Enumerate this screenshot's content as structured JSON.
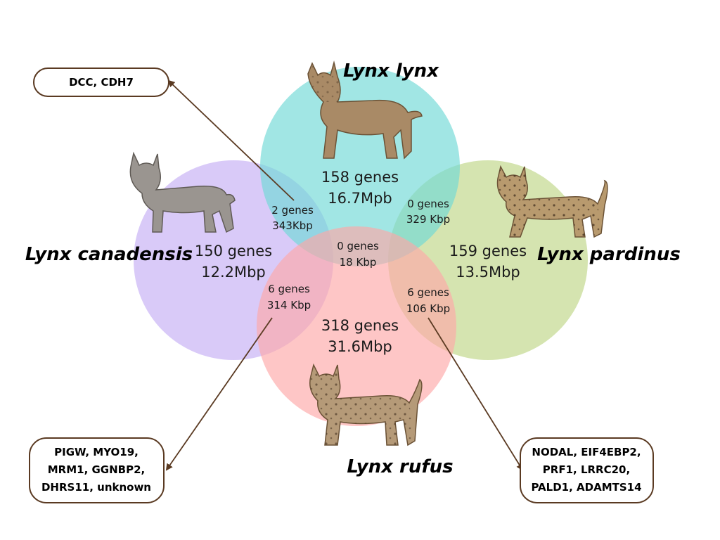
{
  "species": {
    "lynx": "Lynx lynx",
    "canadensis": "Lynx canadensis",
    "pardinus": "Lynx pardinus",
    "rufus": "Lynx rufus"
  },
  "regions": {
    "lynx_only": {
      "genes": "158 genes",
      "size": "16.7Mpb"
    },
    "canadensis_only": {
      "genes": "150 genes",
      "size": "12.2Mbp"
    },
    "pardinus_only": {
      "genes": "159 genes",
      "size": "13.5Mbp"
    },
    "rufus_only": {
      "genes": "318 genes",
      "size": "31.6Mbp"
    },
    "lynx_canadensis": {
      "genes": "2 genes",
      "size": "343Kbp"
    },
    "lynx_pardinus": {
      "genes": "0 genes",
      "size": "329 Kbp"
    },
    "center": {
      "genes": "0 genes",
      "size": "18 Kbp"
    },
    "canadensis_rufus": {
      "genes": "6 genes",
      "size": "314 Kbp"
    },
    "pardinus_rufus": {
      "genes": "6 genes",
      "size": "106 Kbp"
    }
  },
  "callouts": {
    "top_left": [
      "DCC, CDH7"
    ],
    "bottom_left": [
      "PIGW, MYO19,",
      "MRM1, GGNBP2,",
      "DHRS11, unknown"
    ],
    "bottom_right": [
      "NODAL, EIF4EBP2,",
      "PRF1, LRRC20,",
      "PALD1, ADAMTS14"
    ]
  },
  "colors": {
    "lynx": "#6fd9d6",
    "canadensis": "#c9b3f5",
    "pardinus": "#c3d98e",
    "rufus": "#fda8a8",
    "arrow": "#5a3a22",
    "box_border": "#5a3a22"
  },
  "icons": {
    "lynx": "lynx-lynx-illustration",
    "canadensis": "canada-lynx-illustration",
    "pardinus": "iberian-lynx-illustration",
    "rufus": "bobcat-illustration"
  }
}
